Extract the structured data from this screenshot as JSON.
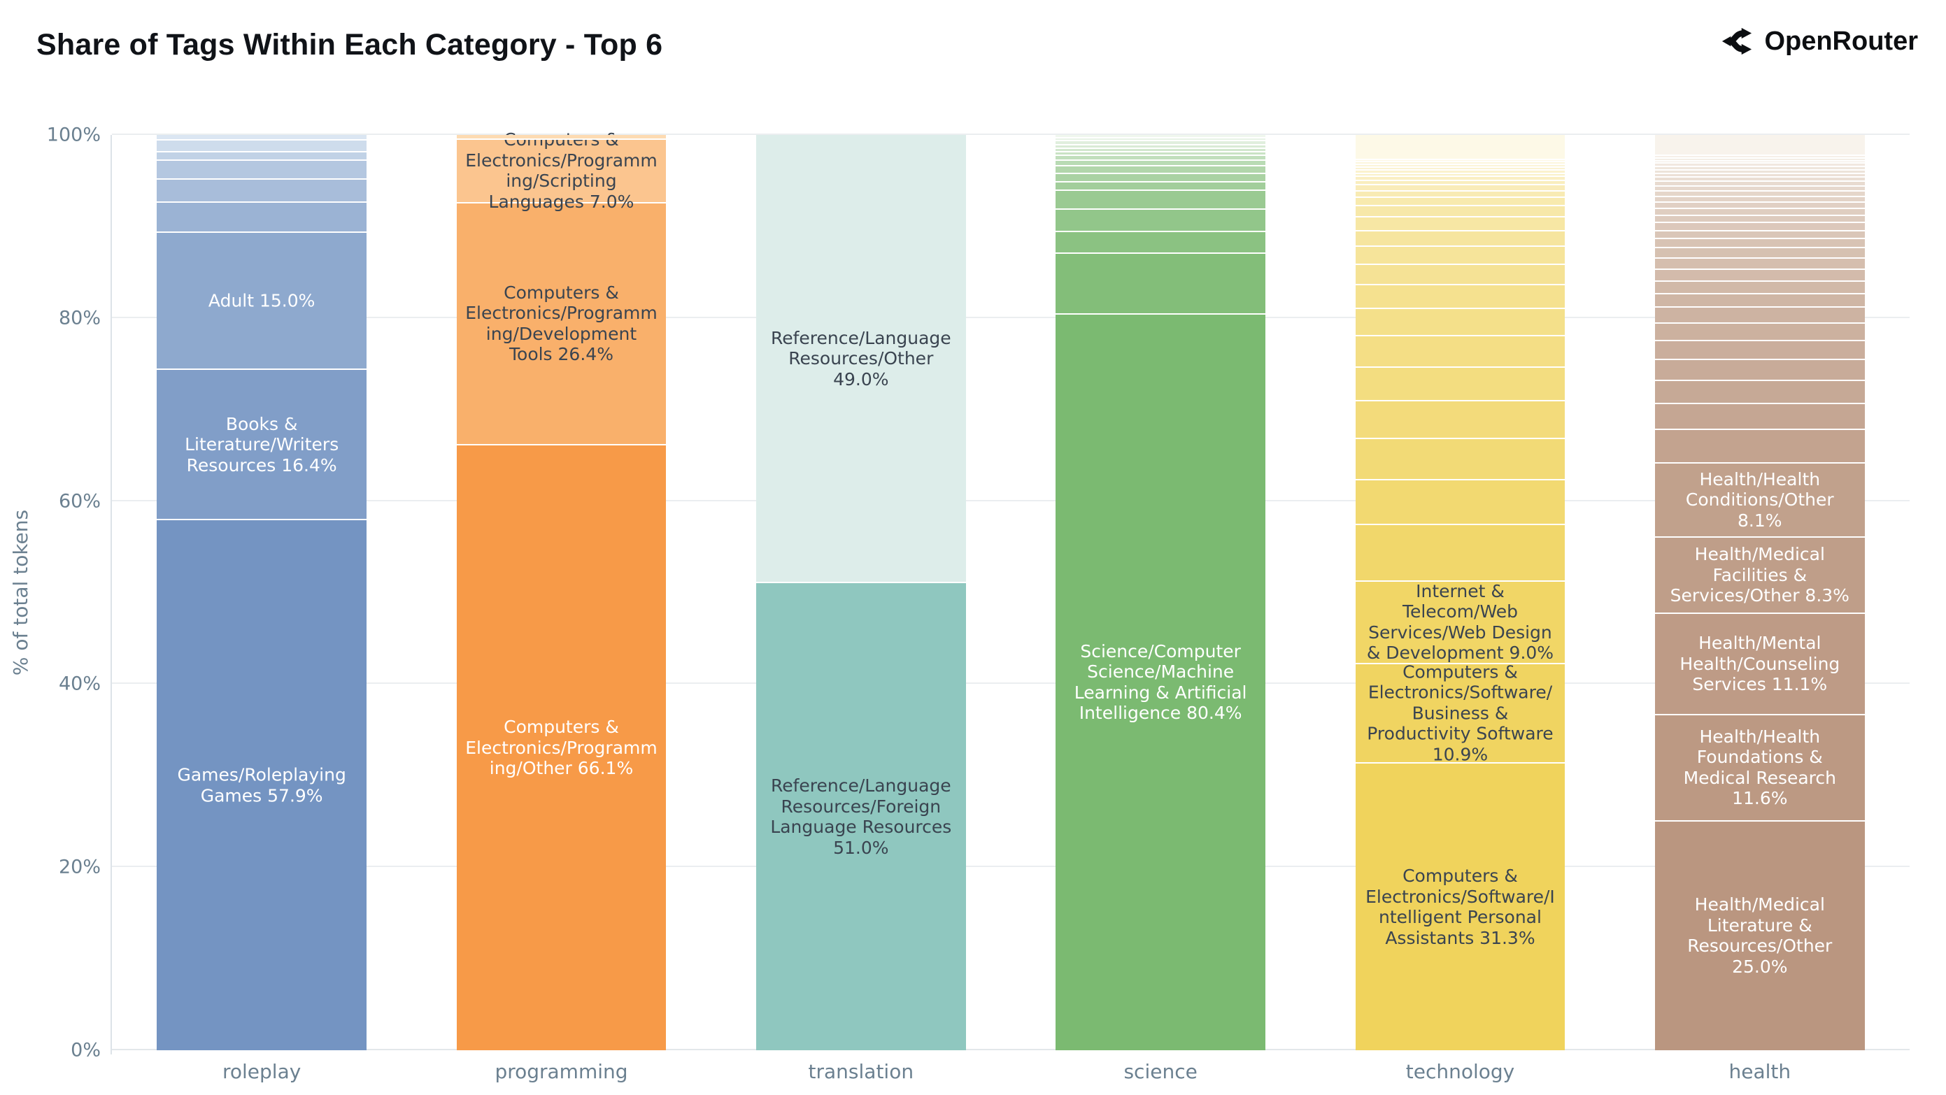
{
  "header": {
    "title": "Share of Tags Within Each Category - Top 6",
    "brand": "OpenRouter"
  },
  "y_axis": {
    "title": "% of total tokens",
    "ticks": [
      {
        "label": "0%",
        "value": 0
      },
      {
        "label": "20%",
        "value": 20
      },
      {
        "label": "40%",
        "value": 40
      },
      {
        "label": "60%",
        "value": 60
      },
      {
        "label": "80%",
        "value": 80
      },
      {
        "label": "100%",
        "value": 100
      }
    ]
  },
  "colors": {
    "axis_text": "#6b8090",
    "grid_line": "#ebeef0",
    "label_dark_text": "#3a4450",
    "label_light_text": "#ffffff"
  },
  "chart_data": {
    "type": "bar",
    "stacked": true,
    "orientation": "vertical",
    "title": "Share of Tags Within Each Category - Top 6",
    "ylabel": "% of total tokens",
    "ylim": [
      0,
      100
    ],
    "grid": true,
    "legend": "none",
    "categories": [
      "roleplay",
      "programming",
      "translation",
      "science",
      "technology",
      "health"
    ],
    "bars": [
      {
        "category": "roleplay",
        "color_dark": "#7494c2",
        "color_light": "#dbe6f2",
        "segments": [
          {
            "label": "Games/Roleplaying Games 57.9%",
            "value": 57.9
          },
          {
            "label": "Books & Literature/Writers Resources 16.4%",
            "value": 16.4
          },
          {
            "label": "Adult 15.0%",
            "value": 15.0
          },
          {
            "label": "",
            "value": 3.3
          },
          {
            "label": "",
            "value": 2.5
          },
          {
            "label": "",
            "value": 2.1
          },
          {
            "label": "",
            "value": 0.9
          },
          {
            "label": "",
            "value": 1.3
          },
          {
            "label": "",
            "value": 0.6
          }
        ]
      },
      {
        "category": "programming",
        "color_dark": "#f79a48",
        "color_light": "#fddbb2",
        "segments": [
          {
            "label": "Computers & Electronics/Programming/Other 66.1%",
            "value": 66.1
          },
          {
            "label": "Computers & Electronics/Programming/Development Tools 26.4%",
            "value": 26.4
          },
          {
            "label": "Computers & Electronics/Programming/Scripting Languages 7.0%",
            "value": 7.0
          },
          {
            "label": "",
            "value": 0.5
          }
        ]
      },
      {
        "category": "translation",
        "color_dark": "#8fc7bf",
        "color_light": "#ddedea",
        "segments": [
          {
            "label": "Reference/Language Resources/Foreign Language Resources 51.0%",
            "value": 51.0
          },
          {
            "label": "Reference/Language Resources/Other 49.0%",
            "value": 49.0
          }
        ]
      },
      {
        "category": "science",
        "color_dark": "#7bba71",
        "color_light": "#f0f7ee",
        "segments": [
          {
            "label": "Science/Computer Science/Machine Learning & Artificial Intelligence 80.4%",
            "value": 80.4
          },
          {
            "label": "",
            "value": 6.6
          },
          {
            "label": "",
            "value": 2.4
          },
          {
            "label": "",
            "value": 2.4
          },
          {
            "label": "",
            "value": 2.1
          },
          {
            "label": "",
            "value": 0.9
          },
          {
            "label": "",
            "value": 0.9
          },
          {
            "label": "",
            "value": 0.9
          },
          {
            "label": "",
            "value": 0.6
          },
          {
            "label": "",
            "value": 0.5
          },
          {
            "label": "",
            "value": 0.4
          },
          {
            "label": "",
            "value": 0.4
          },
          {
            "label": "",
            "value": 0.4
          },
          {
            "label": "",
            "value": 0.4
          },
          {
            "label": "",
            "value": 0.35
          },
          {
            "label": "",
            "value": 0.35
          }
        ]
      },
      {
        "category": "technology",
        "color_dark": "#f0d35c",
        "color_light": "#fdf9e7",
        "segments": [
          {
            "label": "Computers & Electronics/Software/Intelligent Personal Assistants 31.3%",
            "value": 31.3
          },
          {
            "label": "Computers & Electronics/Software/Business & Productivity Software 10.9%",
            "value": 10.9
          },
          {
            "label": "Internet & Telecom/Web Services/Web Design & Development 9.0%",
            "value": 9.0
          },
          {
            "label": "",
            "value": 6.2
          },
          {
            "label": "",
            "value": 4.9
          },
          {
            "label": "",
            "value": 4.5
          },
          {
            "label": "",
            "value": 4.1
          },
          {
            "label": "",
            "value": 3.7
          },
          {
            "label": "",
            "value": 3.4
          },
          {
            "label": "",
            "value": 3.0
          },
          {
            "label": "",
            "value": 2.6
          },
          {
            "label": "",
            "value": 2.2
          },
          {
            "label": "",
            "value": 2.0
          },
          {
            "label": "",
            "value": 1.7
          },
          {
            "label": "",
            "value": 1.5
          },
          {
            "label": "",
            "value": 1.2
          },
          {
            "label": "",
            "value": 0.9
          },
          {
            "label": "",
            "value": 0.7
          },
          {
            "label": "",
            "value": 0.7
          },
          {
            "label": "",
            "value": 0.5
          },
          {
            "label": "",
            "value": 0.4
          },
          {
            "label": "",
            "value": 0.35
          },
          {
            "label": "",
            "value": 0.35
          },
          {
            "label": "",
            "value": 0.3
          },
          {
            "label": "",
            "value": 0.3
          },
          {
            "label": "",
            "value": 0.3
          },
          {
            "label": "",
            "value": 0.3
          },
          {
            "label": "",
            "value": 2.7
          }
        ]
      },
      {
        "category": "health",
        "color_dark": "#ba9680",
        "color_light": "#f8f3ec",
        "segments": [
          {
            "label": "Health/Medical Literature & Resources/Other 25.0%",
            "value": 25.0
          },
          {
            "label": "Health/Health Foundations & Medical Research 11.6%",
            "value": 11.6
          },
          {
            "label": "Health/Mental Health/Counseling Services 11.1%",
            "value": 11.1
          },
          {
            "label": "Health/Medical Facilities & Services/Other 8.3%",
            "value": 8.3
          },
          {
            "label": "Health/Health Conditions/Other 8.1%",
            "value": 8.1
          },
          {
            "label": "",
            "value": 3.7
          },
          {
            "label": "",
            "value": 2.8
          },
          {
            "label": "",
            "value": 2.5
          },
          {
            "label": "",
            "value": 2.3
          },
          {
            "label": "",
            "value": 2.1
          },
          {
            "label": "",
            "value": 1.9
          },
          {
            "label": "",
            "value": 1.7
          },
          {
            "label": "",
            "value": 1.5
          },
          {
            "label": "",
            "value": 1.4
          },
          {
            "label": "",
            "value": 1.3
          },
          {
            "label": "",
            "value": 1.2
          },
          {
            "label": "",
            "value": 1.1
          },
          {
            "label": "",
            "value": 1.0
          },
          {
            "label": "",
            "value": 0.9
          },
          {
            "label": "",
            "value": 0.85
          },
          {
            "label": "",
            "value": 0.8
          },
          {
            "label": "",
            "value": 0.75
          },
          {
            "label": "",
            "value": 0.7
          },
          {
            "label": "",
            "value": 0.65
          },
          {
            "label": "",
            "value": 0.6
          },
          {
            "label": "",
            "value": 0.55
          },
          {
            "label": "",
            "value": 0.5
          },
          {
            "label": "",
            "value": 0.45
          },
          {
            "label": "",
            "value": 0.4
          },
          {
            "label": "",
            "value": 0.4
          },
          {
            "label": "",
            "value": 0.35
          },
          {
            "label": "",
            "value": 0.35
          },
          {
            "label": "",
            "value": 0.3
          },
          {
            "label": "",
            "value": 0.3
          },
          {
            "label": "",
            "value": 0.25
          },
          {
            "label": "",
            "value": 2.3
          }
        ]
      }
    ]
  }
}
